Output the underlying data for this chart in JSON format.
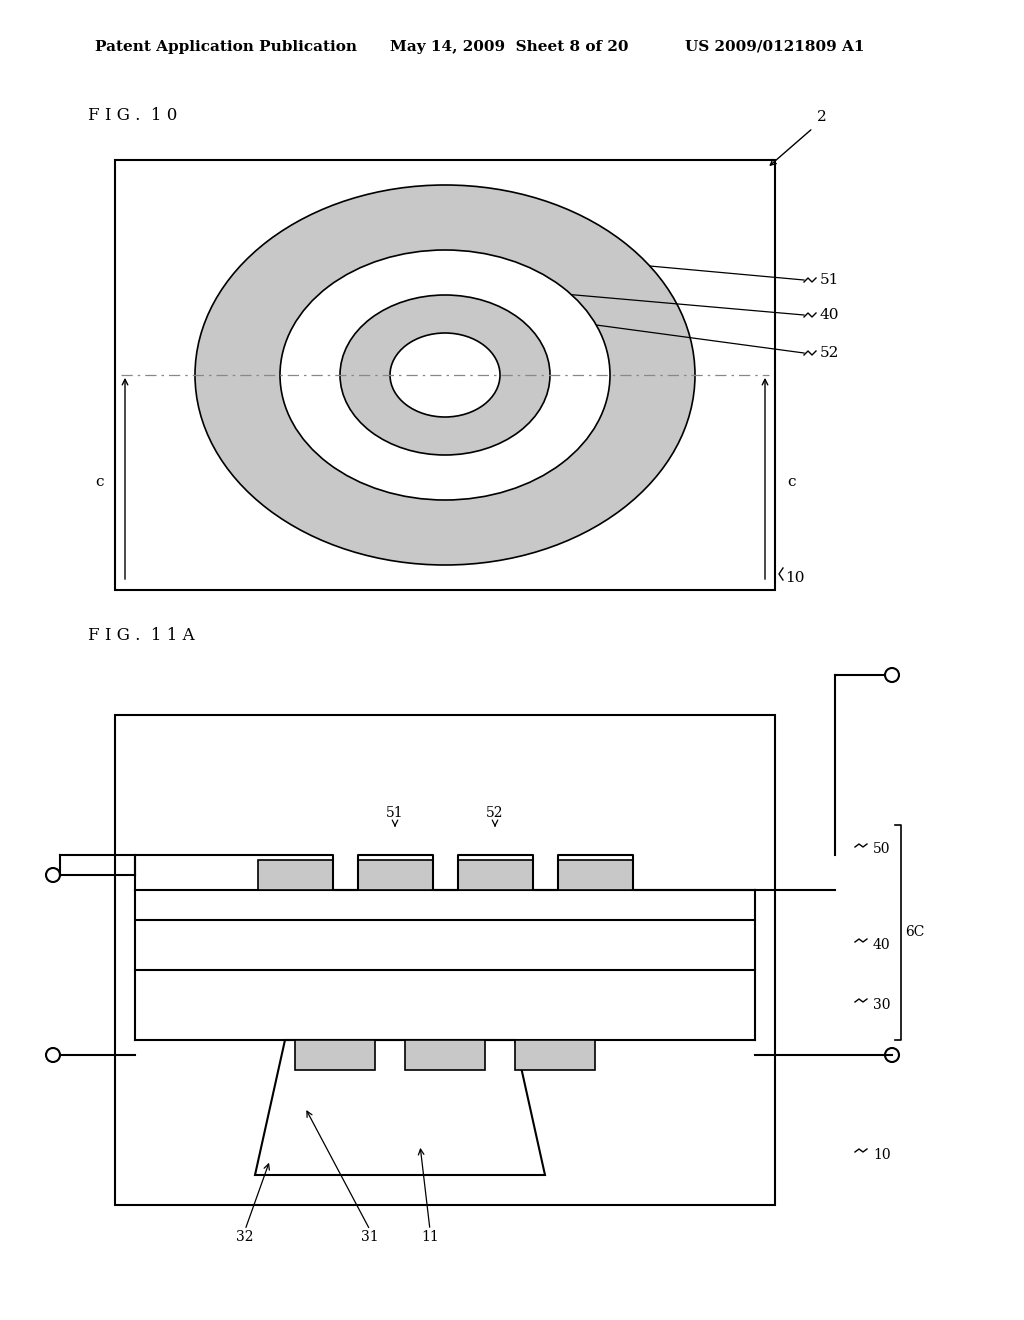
{
  "bg_color": "#ffffff",
  "header_text": "Patent Application Publication",
  "header_date": "May 14, 2009  Sheet 8 of 20",
  "header_patent": "US 2009/0121809 A1",
  "fig10_label": "F I G .  1 0",
  "fig11a_label": "F I G .  1 1 A",
  "label_color": "#000000",
  "gray_fill": "#c8c8c8",
  "line_color": "#000000"
}
